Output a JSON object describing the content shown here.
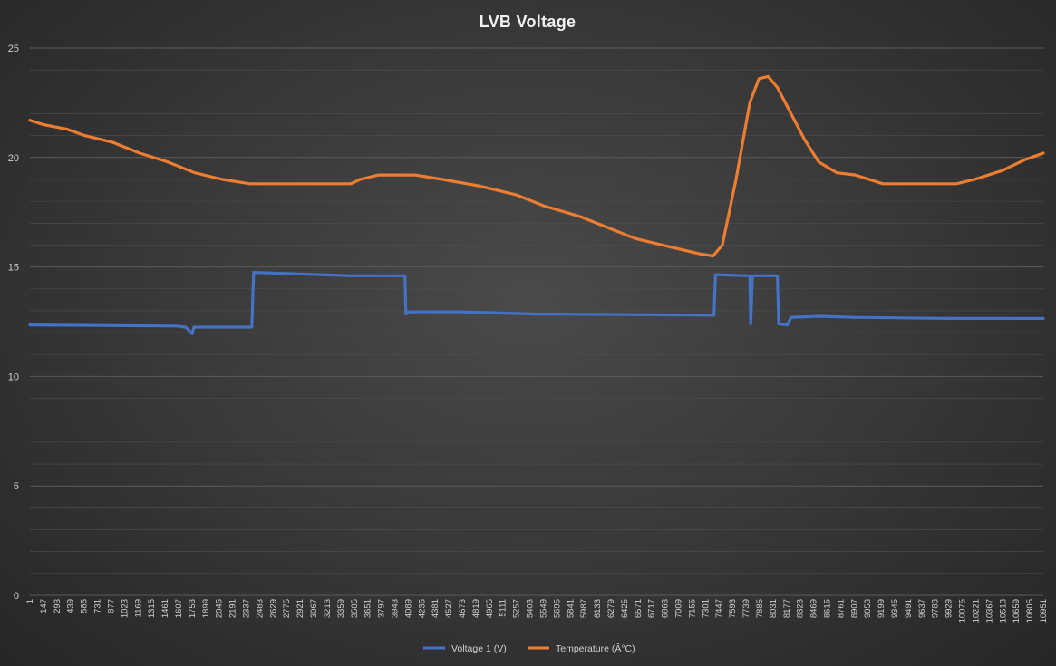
{
  "chart_data": {
    "type": "line",
    "title": "LVB  Voltage",
    "xlabel": "",
    "ylabel": "",
    "ylim": [
      0,
      25
    ],
    "yticks": [
      0,
      5,
      10,
      15,
      20,
      25
    ],
    "grid": true,
    "legend_position": "bottom",
    "x_tick_labels": [
      "1",
      "147",
      "293",
      "439",
      "585",
      "731",
      "877",
      "1023",
      "1169",
      "1315",
      "1461",
      "1607",
      "1753",
      "1899",
      "2045",
      "2191",
      "2337",
      "2483",
      "2629",
      "2775",
      "2921",
      "3067",
      "3213",
      "3359",
      "3505",
      "3651",
      "3797",
      "3943",
      "4089",
      "4235",
      "4381",
      "4527",
      "4673",
      "4819",
      "4965",
      "5111",
      "5257",
      "5403",
      "5549",
      "5695",
      "5841",
      "5987",
      "6133",
      "6279",
      "6425",
      "6571",
      "6717",
      "6863",
      "7009",
      "7155",
      "7301",
      "7447",
      "7593",
      "7739",
      "7885",
      "8031",
      "8177",
      "8323",
      "8469",
      "8615",
      "8761",
      "8907",
      "9053",
      "9199",
      "9345",
      "9491",
      "9637",
      "9783",
      "9929",
      "10075",
      "10221",
      "10367",
      "10513",
      "10659",
      "10805",
      "10951"
    ],
    "x_max": 11050,
    "series": [
      {
        "name": "Voltage 1 (V)",
        "color": "#4472C4",
        "points": [
          [
            1,
            12.35
          ],
          [
            1600,
            12.3
          ],
          [
            1700,
            12.25
          ],
          [
            1770,
            11.95
          ],
          [
            1790,
            12.25
          ],
          [
            2420,
            12.25
          ],
          [
            2440,
            14.75
          ],
          [
            2800,
            14.7
          ],
          [
            3500,
            14.6
          ],
          [
            4090,
            14.6
          ],
          [
            4100,
            12.85
          ],
          [
            4130,
            12.95
          ],
          [
            4700,
            12.95
          ],
          [
            5500,
            12.85
          ],
          [
            7400,
            12.8
          ],
          [
            7460,
            12.8
          ],
          [
            7475,
            14.65
          ],
          [
            7850,
            14.6
          ],
          [
            7860,
            12.4
          ],
          [
            7880,
            14.6
          ],
          [
            8150,
            14.6
          ],
          [
            8165,
            12.4
          ],
          [
            8260,
            12.35
          ],
          [
            8300,
            12.7
          ],
          [
            8600,
            12.75
          ],
          [
            9000,
            12.7
          ],
          [
            10000,
            12.65
          ],
          [
            11050,
            12.65
          ]
        ]
      },
      {
        "name": "Temperature (Â°C)",
        "color": "#ED7D31",
        "points": [
          [
            1,
            21.7
          ],
          [
            150,
            21.5
          ],
          [
            400,
            21.3
          ],
          [
            600,
            21.0
          ],
          [
            900,
            20.7
          ],
          [
            1200,
            20.2
          ],
          [
            1500,
            19.8
          ],
          [
            1800,
            19.3
          ],
          [
            2100,
            19.0
          ],
          [
            2400,
            18.8
          ],
          [
            3000,
            18.8
          ],
          [
            3500,
            18.8
          ],
          [
            3600,
            19.0
          ],
          [
            3800,
            19.2
          ],
          [
            4200,
            19.2
          ],
          [
            4500,
            19.0
          ],
          [
            4900,
            18.7
          ],
          [
            5300,
            18.3
          ],
          [
            5600,
            17.8
          ],
          [
            6000,
            17.3
          ],
          [
            6300,
            16.8
          ],
          [
            6600,
            16.3
          ],
          [
            7000,
            15.9
          ],
          [
            7300,
            15.6
          ],
          [
            7450,
            15.5
          ],
          [
            7550,
            16.0
          ],
          [
            7700,
            19.0
          ],
          [
            7850,
            22.5
          ],
          [
            7950,
            23.6
          ],
          [
            8050,
            23.7
          ],
          [
            8150,
            23.2
          ],
          [
            8300,
            22.0
          ],
          [
            8450,
            20.8
          ],
          [
            8600,
            19.8
          ],
          [
            8800,
            19.3
          ],
          [
            9000,
            19.2
          ],
          [
            9300,
            18.8
          ],
          [
            9800,
            18.8
          ],
          [
            10100,
            18.8
          ],
          [
            10300,
            19.0
          ],
          [
            10600,
            19.4
          ],
          [
            10850,
            19.9
          ],
          [
            11050,
            20.2
          ]
        ]
      }
    ]
  }
}
